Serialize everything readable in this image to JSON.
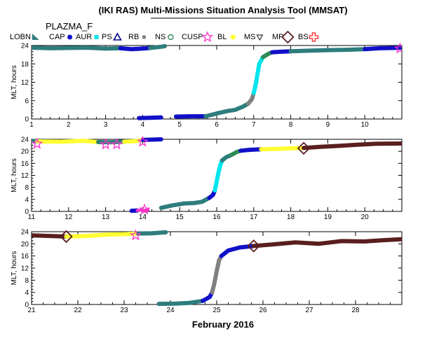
{
  "title": "(IKI RAS) Multi-Missions Situation Analysis Tool (MMSAT)",
  "satellite": "PLAZMA_F",
  "xlabel": "February 2016",
  "legend": [
    {
      "label": "LOBN",
      "color": "#2e7d7d",
      "marker": "wedge"
    },
    {
      "label": "CAP",
      "color": "#1010c8",
      "marker": "dot"
    },
    {
      "label": "AUR",
      "color": "#00e5ee",
      "marker": "square"
    },
    {
      "label": "PS",
      "color": "#00008b",
      "marker": "triangle"
    },
    {
      "label": "RB",
      "color": "#808080",
      "marker": "square-small"
    },
    {
      "label": "NS",
      "color": "#2e8b57",
      "marker": "circle"
    },
    {
      "label": "CUSP",
      "color": "#ff33cc",
      "marker": "star"
    },
    {
      "label": "BL",
      "color": "#ffff33",
      "marker": "dot"
    },
    {
      "label": "MS",
      "color": "#333333",
      "marker": "triangle-down"
    },
    {
      "label": "MP",
      "color": "#5a1e1e",
      "marker": "diamond"
    },
    {
      "label": "BS",
      "color": "#ff2020",
      "marker": "cross"
    }
  ],
  "chart_data": [
    {
      "type": "line",
      "ylabel": "MLT, hours",
      "xlim": [
        1,
        11
      ],
      "ylim": [
        0,
        24
      ],
      "xticks": [
        1,
        2,
        3,
        4,
        5,
        6,
        7,
        8,
        9,
        10
      ],
      "yticks": [
        0,
        6,
        12,
        18,
        24
      ],
      "segments": [
        {
          "region": "LOBN",
          "points": [
            [
              1.0,
              23.3
            ],
            [
              1.5,
              23.1
            ],
            [
              2.0,
              23.2
            ],
            [
              2.5,
              23.3
            ],
            [
              3.0,
              23.0
            ],
            [
              3.4,
              23.1
            ]
          ]
        },
        {
          "region": "CAP",
          "points": [
            [
              3.4,
              23.1
            ],
            [
              3.7,
              22.8
            ],
            [
              4.0,
              23.0
            ],
            [
              4.2,
              23.2
            ]
          ]
        },
        {
          "region": "LOBN",
          "points": [
            [
              4.2,
              23.2
            ],
            [
              4.5,
              23.6
            ],
            [
              4.6,
              23.8
            ]
          ]
        },
        {
          "region": "CAP",
          "points": [
            [
              3.9,
              0.3
            ],
            [
              4.2,
              0.4
            ],
            [
              4.5,
              0.5
            ]
          ]
        },
        {
          "region": "CAP",
          "points": [
            [
              4.9,
              0.8
            ],
            [
              5.3,
              0.9
            ],
            [
              5.7,
              0.9
            ]
          ]
        },
        {
          "region": "LOBN",
          "points": [
            [
              5.7,
              0.9
            ],
            [
              6.0,
              1.8
            ],
            [
              6.3,
              2.6
            ],
            [
              6.5,
              3.0
            ],
            [
              6.7,
              4.0
            ],
            [
              6.85,
              5.0
            ]
          ]
        },
        {
          "region": "RB",
          "points": [
            [
              6.85,
              5.0
            ],
            [
              6.95,
              6.5
            ],
            [
              7.0,
              8.5
            ]
          ]
        },
        {
          "region": "AUR",
          "points": [
            [
              7.0,
              8.5
            ],
            [
              7.05,
              11.0
            ],
            [
              7.1,
              14.5
            ],
            [
              7.15,
              18.0
            ],
            [
              7.25,
              20.2
            ]
          ]
        },
        {
          "region": "NS",
          "points": [
            [
              7.25,
              20.2
            ],
            [
              7.4,
              21.3
            ],
            [
              7.5,
              21.8
            ]
          ]
        },
        {
          "region": "CAP",
          "points": [
            [
              7.5,
              21.8
            ],
            [
              7.8,
              22.0
            ],
            [
              8.0,
              22.1
            ]
          ]
        },
        {
          "region": "LOBN",
          "points": [
            [
              8.0,
              22.1
            ],
            [
              8.5,
              22.3
            ],
            [
              9.0,
              22.5
            ],
            [
              9.5,
              22.6
            ],
            [
              10.0,
              22.8
            ]
          ]
        },
        {
          "region": "CAP",
          "points": [
            [
              10.0,
              22.8
            ],
            [
              10.4,
              23.1
            ],
            [
              10.8,
              23.2
            ],
            [
              11.0,
              23.3
            ]
          ]
        }
      ],
      "markers": [
        {
          "region": "CUSP",
          "x": 10.95,
          "y": 23.0
        }
      ]
    },
    {
      "type": "line",
      "ylabel": "MLT, hours",
      "xlim": [
        11,
        21
      ],
      "ylim": [
        0,
        24
      ],
      "xticks": [
        11,
        12,
        13,
        14,
        15,
        16,
        17,
        18,
        19,
        20
      ],
      "yticks": [
        0,
        4,
        8,
        12,
        16,
        20,
        24
      ],
      "segments": [
        {
          "region": "LOBN",
          "points": [
            [
              11.0,
              23.5
            ],
            [
              11.15,
              23.3
            ]
          ]
        },
        {
          "region": "BL",
          "points": [
            [
              11.15,
              23.3
            ],
            [
              11.8,
              23.2
            ],
            [
              12.4,
              23.5
            ],
            [
              12.8,
              23.1
            ]
          ]
        },
        {
          "region": "LOBN",
          "points": [
            [
              12.8,
              23.1
            ],
            [
              13.1,
              23.0
            ],
            [
              13.5,
              23.2
            ]
          ]
        },
        {
          "region": "BL",
          "points": [
            [
              13.5,
              23.2
            ],
            [
              13.8,
              23.4
            ],
            [
              14.0,
              23.8
            ]
          ]
        },
        {
          "region": "CAP",
          "points": [
            [
              14.0,
              23.8
            ],
            [
              14.3,
              23.9
            ],
            [
              14.5,
              24.0
            ]
          ]
        },
        {
          "region": "CAP",
          "points": [
            [
              13.7,
              0.2
            ],
            [
              13.85,
              0.3
            ]
          ]
        },
        {
          "region": "CUSP",
          "points": [
            [
              13.85,
              0.3
            ],
            [
              14.15,
              0.5
            ]
          ]
        },
        {
          "region": "LOBN",
          "points": [
            [
              14.5,
              1.2
            ],
            [
              14.8,
              2.0
            ],
            [
              15.1,
              2.6
            ],
            [
              15.4,
              2.8
            ],
            [
              15.6,
              3.2
            ],
            [
              15.8,
              4.5
            ]
          ]
        },
        {
          "region": "CAP",
          "points": [
            [
              15.8,
              4.5
            ],
            [
              15.9,
              5.5
            ],
            [
              15.95,
              7.0
            ]
          ]
        },
        {
          "region": "AUR",
          "points": [
            [
              15.95,
              7.0
            ],
            [
              16.0,
              10.0
            ],
            [
              16.05,
              13.0
            ],
            [
              16.1,
              15.5
            ],
            [
              16.15,
              17.0
            ]
          ]
        },
        {
          "region": "LOBN",
          "points": [
            [
              16.15,
              17.0
            ],
            [
              16.25,
              18.0
            ],
            [
              16.4,
              18.8
            ]
          ]
        },
        {
          "region": "NS",
          "points": [
            [
              16.4,
              18.8
            ],
            [
              16.55,
              19.8
            ],
            [
              16.65,
              20.2
            ]
          ]
        },
        {
          "region": "CAP",
          "points": [
            [
              16.65,
              20.2
            ],
            [
              16.9,
              20.5
            ],
            [
              17.2,
              20.7
            ]
          ]
        },
        {
          "region": "BL",
          "points": [
            [
              17.2,
              20.7
            ],
            [
              17.6,
              20.8
            ],
            [
              18.0,
              21.0
            ],
            [
              18.35,
              21.1
            ]
          ]
        },
        {
          "region": "MP",
          "points": [
            [
              18.35,
              21.1
            ],
            [
              18.8,
              21.5
            ],
            [
              19.3,
              21.8
            ],
            [
              19.8,
              22.2
            ],
            [
              20.3,
              22.5
            ],
            [
              21.0,
              22.6
            ]
          ]
        }
      ],
      "markers": [
        {
          "region": "CUSP",
          "x": 11.15,
          "y": 22.5
        },
        {
          "region": "CUSP",
          "x": 13.0,
          "y": 22.3
        },
        {
          "region": "CUSP",
          "x": 13.3,
          "y": 22.3
        },
        {
          "region": "CUSP",
          "x": 14.0,
          "y": 23.2
        },
        {
          "region": "CUSP",
          "x": 14.05,
          "y": 0.6
        },
        {
          "region": "MP",
          "x": 18.35,
          "y": 21.0
        }
      ]
    },
    {
      "type": "line",
      "ylabel": "MLT, hours",
      "xlim": [
        21,
        29
      ],
      "ylim": [
        0,
        24
      ],
      "xticks": [
        21,
        22,
        23,
        24,
        25,
        26,
        27,
        28
      ],
      "yticks": [
        0,
        4,
        8,
        12,
        16,
        20,
        24
      ],
      "segments": [
        {
          "region": "MP",
          "points": [
            [
              21.0,
              22.8
            ],
            [
              21.4,
              22.6
            ],
            [
              21.75,
              22.4
            ]
          ]
        },
        {
          "region": "BL",
          "points": [
            [
              21.75,
              22.4
            ],
            [
              22.2,
              22.6
            ],
            [
              22.6,
              23.0
            ],
            [
              23.0,
              23.2
            ],
            [
              23.3,
              23.4
            ]
          ]
        },
        {
          "region": "LOBN",
          "points": [
            [
              23.3,
              23.4
            ],
            [
              23.6,
              23.5
            ],
            [
              23.9,
              23.8
            ]
          ]
        },
        {
          "region": "LOBN",
          "points": [
            [
              23.75,
              0.2
            ],
            [
              24.1,
              0.3
            ],
            [
              24.4,
              0.5
            ],
            [
              24.7,
              1.2
            ]
          ]
        },
        {
          "region": "CAP",
          "points": [
            [
              24.7,
              1.2
            ],
            [
              24.85,
              2.5
            ],
            [
              24.9,
              4.0
            ]
          ]
        },
        {
          "region": "RB",
          "points": [
            [
              24.9,
              4.0
            ],
            [
              24.95,
              7.0
            ],
            [
              25.0,
              11.0
            ],
            [
              25.05,
              14.5
            ],
            [
              25.1,
              16.0
            ]
          ]
        },
        {
          "region": "CAP",
          "points": [
            [
              25.1,
              16.0
            ],
            [
              25.25,
              17.8
            ],
            [
              25.5,
              18.8
            ],
            [
              25.8,
              19.3
            ]
          ]
        },
        {
          "region": "MP",
          "points": [
            [
              25.8,
              19.3
            ],
            [
              26.2,
              19.8
            ],
            [
              26.7,
              20.5
            ],
            [
              27.2,
              20.0
            ],
            [
              27.7,
              20.9
            ],
            [
              28.2,
              20.8
            ],
            [
              28.6,
              21.2
            ],
            [
              29.0,
              21.5
            ]
          ]
        }
      ],
      "markers": [
        {
          "region": "MP",
          "x": 21.75,
          "y": 22.4
        },
        {
          "region": "CUSP",
          "x": 23.25,
          "y": 22.8
        },
        {
          "region": "MP",
          "x": 25.8,
          "y": 19.3
        }
      ]
    }
  ]
}
